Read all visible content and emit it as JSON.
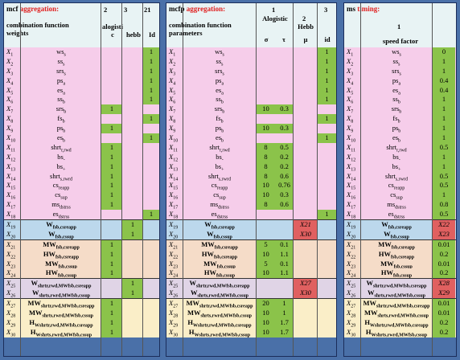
{
  "panel1": {
    "title_prefix": "mcf",
    "title_red": "aggregation:",
    "subtitle": "combination function weights",
    "col_numbers": [
      "2",
      "3",
      "21"
    ],
    "col_headers": [
      "alogistic",
      "hebb",
      "Id"
    ]
  },
  "panel2": {
    "title_prefix": "mcfp",
    "title_red": "aggregation:",
    "subtitle": "combination function parameters",
    "col_numbers": [
      "1",
      "2",
      "3"
    ],
    "col_headers": [
      "Alogistic",
      "Hebb",
      "id"
    ],
    "param_headers": [
      "σ",
      "τ",
      "μ"
    ]
  },
  "panel3": {
    "title_prefix": "ms",
    "title_red": "timing:",
    "col_number": "1",
    "col_header": "speed factor"
  },
  "rows": [
    {
      "x": "X",
      "n": "1",
      "name": "ws",
      "sub": "s",
      "p1": [
        0,
        0,
        1
      ],
      "p2": [
        "",
        "",
        "",
        "1"
      ],
      "speed": "0"
    },
    {
      "x": "X",
      "n": "2",
      "name": "ss",
      "sub": "s",
      "p1": [
        0,
        0,
        1
      ],
      "p2": [
        "",
        "",
        "",
        "1"
      ],
      "speed": "1"
    },
    {
      "x": "X",
      "n": "3",
      "name": "srs",
      "sub": "s",
      "p1": [
        0,
        0,
        1
      ],
      "p2": [
        "",
        "",
        "",
        "1"
      ],
      "speed": "1"
    },
    {
      "x": "X",
      "n": "4",
      "name": "ps",
      "sub": "a",
      "p1": [
        0,
        0,
        1
      ],
      "p2": [
        "",
        "",
        "",
        "1"
      ],
      "speed": "0.4"
    },
    {
      "x": "X",
      "n": "5",
      "name": "es",
      "sub": "a",
      "p1": [
        0,
        0,
        1
      ],
      "p2": [
        "",
        "",
        "",
        "1"
      ],
      "speed": "0.4"
    },
    {
      "x": "X",
      "n": "6",
      "name": "ss",
      "sub": "b",
      "p1": [
        0,
        0,
        1
      ],
      "p2": [
        "",
        "",
        "",
        "1"
      ],
      "speed": "1"
    },
    {
      "x": "X",
      "n": "7",
      "name": "srs",
      "sub": "b",
      "p1": [
        1,
        0,
        0
      ],
      "p2": [
        "10",
        "0.3",
        "",
        ""
      ],
      "speed": "1"
    },
    {
      "x": "X",
      "n": "8",
      "name": "fs",
      "sub": "b",
      "p1": [
        0,
        0,
        1
      ],
      "p2": [
        "",
        "",
        "",
        "1"
      ],
      "speed": "1"
    },
    {
      "x": "X",
      "n": "9",
      "name": "ps",
      "sub": "b",
      "p1": [
        1,
        0,
        0
      ],
      "p2": [
        "10",
        "0.3",
        "",
        ""
      ],
      "speed": "1"
    },
    {
      "x": "X",
      "n": "10",
      "name": "es",
      "sub": "b",
      "p1": [
        0,
        0,
        1
      ],
      "p2": [
        "",
        "",
        "",
        "1"
      ],
      "speed": "1"
    },
    {
      "x": "X",
      "n": "11",
      "name": "shrt",
      "sub": "r,rwd",
      "p1": [
        1,
        0,
        0
      ],
      "p2": [
        "8",
        "0.5",
        "",
        ""
      ],
      "speed": "0.5"
    },
    {
      "x": "X",
      "n": "12",
      "name": "bs",
      "sub": "-",
      "p1": [
        1,
        0,
        0
      ],
      "p2": [
        "8",
        "0.2",
        "",
        ""
      ],
      "speed": "1"
    },
    {
      "x": "X",
      "n": "13",
      "name": "bs",
      "sub": "+",
      "p1": [
        1,
        0,
        0
      ],
      "p2": [
        "8",
        "0.2",
        "",
        ""
      ],
      "speed": "1"
    },
    {
      "x": "X",
      "n": "14",
      "name": "shrt",
      "sub": "s,rwrd",
      "p1": [
        1,
        0,
        0
      ],
      "p2": [
        "8",
        "0.6",
        "",
        ""
      ],
      "speed": "0.5"
    },
    {
      "x": "X",
      "n": "15",
      "name": "cs",
      "sub": "reapp",
      "p1": [
        1,
        0,
        0
      ],
      "p2": [
        "10",
        "0.76",
        "",
        ""
      ],
      "speed": "0.5"
    },
    {
      "x": "X",
      "n": "16",
      "name": "cs",
      "sub": "sup",
      "p1": [
        1,
        0,
        0
      ],
      "p2": [
        "10",
        "0.3",
        "",
        ""
      ],
      "speed": "1"
    },
    {
      "x": "X",
      "n": "17",
      "name": "ms",
      "sub": "dstrss",
      "p1": [
        1,
        0,
        0
      ],
      "p2": [
        "8",
        "0.6",
        "",
        ""
      ],
      "speed": "0.8"
    },
    {
      "x": "X",
      "n": "18",
      "name": "es",
      "sub": "dstrss",
      "p1": [
        0,
        0,
        1
      ],
      "p2": [
        "",
        "",
        "",
        "1"
      ],
      "speed": "0.5"
    },
    {
      "x": "X",
      "n": "19",
      "name": "W",
      "sub": "fsb,csreapp",
      "bold": true,
      "p1": [
        0,
        1,
        0
      ],
      "p2": [
        "",
        "",
        "X21",
        ""
      ],
      "speed": "X22",
      "speedRed": true
    },
    {
      "x": "X",
      "n": "20",
      "name": "W",
      "sub": "fsb,cssup",
      "bold": true,
      "p1": [
        0,
        1,
        0
      ],
      "p2": [
        "",
        "",
        "X30",
        ""
      ],
      "speed": "X23",
      "speedRed": true
    },
    {
      "x": "X",
      "n": "21",
      "name": "MW",
      "sub": "fsb,csreapp",
      "bold": true,
      "p1": [
        1,
        0,
        0
      ],
      "p2": [
        "5",
        "0.1",
        "",
        ""
      ],
      "speed": "0.01"
    },
    {
      "x": "X",
      "n": "22",
      "name": "HW",
      "sub": "fsb,csreapp",
      "bold": true,
      "p1": [
        1,
        0,
        0
      ],
      "p2": [
        "10",
        "1.1",
        "",
        ""
      ],
      "speed": "0.2"
    },
    {
      "x": "X",
      "n": "23",
      "name": "MW",
      "sub": "fsb,cssup",
      "bold": true,
      "p1": [
        1,
        0,
        0
      ],
      "p2": [
        "5",
        "0.1",
        "",
        ""
      ],
      "speed": "0.01"
    },
    {
      "x": "X",
      "n": "24",
      "name": "HW",
      "sub": "fsb,cssup",
      "bold": true,
      "p1": [
        1,
        0,
        0
      ],
      "p2": [
        "10",
        "1.1",
        "",
        ""
      ],
      "speed": "0.2"
    },
    {
      "x": "X",
      "n": "25",
      "name": "W",
      "sub": "shrtr,rwd,MWfsb,csreapp",
      "bold": true,
      "p1": [
        0,
        1,
        0
      ],
      "p2": [
        "",
        "",
        "X27",
        ""
      ],
      "speed": "X28",
      "speedRed": true
    },
    {
      "x": "X",
      "n": "26",
      "name": "W",
      "sub": "shrts,rwrd,MWfsb,cssup",
      "bold": true,
      "p1": [
        0,
        1,
        0
      ],
      "p2": [
        "",
        "",
        "X30",
        ""
      ],
      "speed": "X29",
      "speedRed": true
    },
    {
      "x": "X",
      "n": "27",
      "name": "MW",
      "sub": "shrtr,rwd,MWfsb,csreapp",
      "bold": true,
      "p1": [
        1,
        0,
        0
      ],
      "p2": [
        "20",
        "1",
        "",
        ""
      ],
      "speed": "0.01"
    },
    {
      "x": "X",
      "n": "28",
      "name": "MW",
      "sub": "shrts,rwrd,MWfsb,cssup",
      "bold": true,
      "p1": [
        1,
        0,
        0
      ],
      "p2": [
        "10",
        "1",
        "",
        ""
      ],
      "speed": "0.01"
    },
    {
      "x": "X",
      "n": "29",
      "name": "H",
      "sub": "Wshrtr,rwd,MWfsb,csreapp",
      "bold": true,
      "p1": [
        1,
        0,
        0
      ],
      "p2": [
        "10",
        "1.7",
        "",
        ""
      ],
      "speed": "0.2"
    },
    {
      "x": "X",
      "n": "30",
      "name": "H",
      "sub": "Wshrts,rwrd,MWfsb,cssup",
      "bold": true,
      "p1": [
        1,
        0,
        0
      ],
      "p2": [
        "10",
        "1.7",
        "",
        ""
      ],
      "speed": "0.2"
    }
  ],
  "colors": {
    "green": "#8bc34a",
    "red": "#e06060",
    "pink": "#f6cdea",
    "blue": "#bcd8ec",
    "peach": "#f5dcc8",
    "lavender": "#e0d4e6",
    "yellow": "#faeec8"
  }
}
